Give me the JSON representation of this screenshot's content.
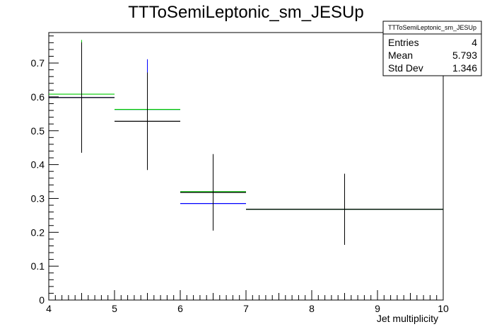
{
  "chart_data": {
    "type": "histogram",
    "title": "TTToSemiLeptonic_sm_JESUp",
    "xlabel": "Jet multiplicity",
    "ylabel": "",
    "xlim": [
      4,
      10
    ],
    "ylim": [
      0,
      0.79
    ],
    "x_ticks": [
      "4",
      "5",
      "6",
      "7",
      "8",
      "9",
      "10"
    ],
    "y_ticks": [
      "0",
      "0.1",
      "0.2",
      "0.3",
      "0.4",
      "0.5",
      "0.6",
      "0.7"
    ],
    "grid": false,
    "stats_box": {
      "title": "TTToSemiLeptonic_sm_JESUp",
      "rows": [
        {
          "label": "Entries",
          "value": "4"
        },
        {
          "label": "Mean",
          "value": "5.793"
        },
        {
          "label": "Std Dev",
          "value": "1.346"
        }
      ]
    },
    "bins": [
      {
        "x_low": 4,
        "x_high": 5
      },
      {
        "x_low": 5,
        "x_high": 6
      },
      {
        "x_low": 6,
        "x_high": 7
      },
      {
        "x_low": 7,
        "x_high": 10
      }
    ],
    "series": [
      {
        "color": "#000000",
        "values": [
          0.598,
          0.528,
          0.318,
          0.268
        ],
        "errors": [
          0.163,
          0.144,
          0.113,
          0.105
        ],
        "error_x_centers": [
          4.5,
          5.5,
          6.5,
          8.5
        ]
      },
      {
        "color": "#0000ff",
        "values": [
          0.598,
          0.563,
          0.285,
          0.268
        ],
        "errors": [
          0.0,
          0.148,
          0.0,
          0.0
        ],
        "error_x_centers": [
          4.5,
          5.5,
          6.5,
          8.5
        ]
      },
      {
        "color": "#00cc00",
        "values": [
          0.608,
          0.563,
          0.32,
          0.268
        ],
        "errors": [
          0.16,
          0.0,
          0.0,
          0.0
        ],
        "error_x_centers": [
          4.5,
          5.5,
          6.5,
          8.5
        ]
      }
    ]
  }
}
